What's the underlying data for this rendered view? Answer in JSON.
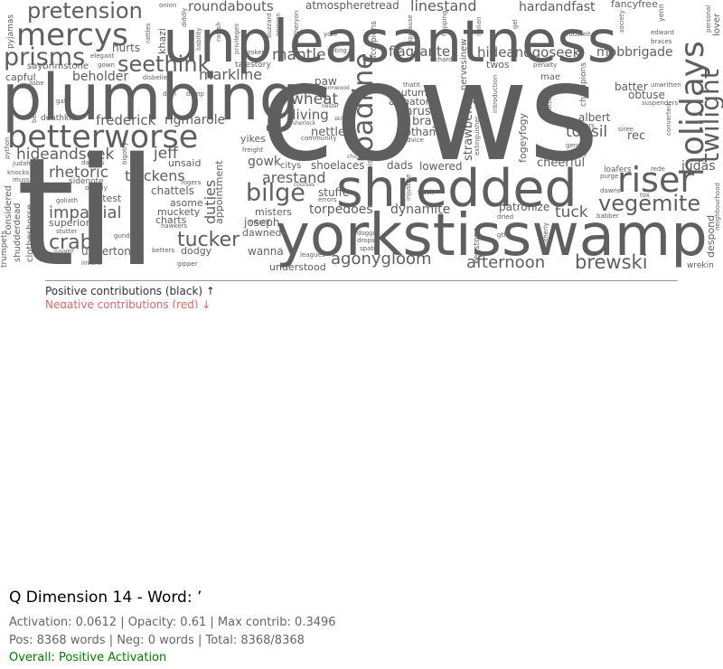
{
  "colors": {
    "word": "#5f5f5f",
    "positive": "#333333",
    "negative": "#e06666",
    "overall": "#008000"
  },
  "legend": {
    "positive": "Positive contributions (black) ↑",
    "negative": "Negative contributions (red) ↓"
  },
  "info": {
    "title": "Q Dimension 14 - Word: ’",
    "activation_line": "Activation: 0.0612 | Opacity: 0.61 | Max contrib: 0.3496",
    "counts_line": "Pos: 8368 words | Neg: 0 words | Total: 8368/8368",
    "overall": "Overall: Positive Activation"
  },
  "words": [
    "cows",
    "til",
    "plumbing",
    "unpleasantness",
    "yorkstisswamp",
    "shredded",
    "betterworse",
    "mercys",
    "pretension",
    "prisms",
    "seethink",
    "riser",
    "holidays",
    "twilight",
    "roadline",
    "bilge",
    "vegemite",
    "tucker",
    "crabs",
    "impartial",
    "agonygloom",
    "afternoon",
    "brewski",
    "rhetoric",
    "hideandseek",
    "jeff",
    "thickens",
    "arestand",
    "linestand",
    "hardandfast",
    "hideandgoseek",
    "mobbrigade",
    "flagrante",
    "mantle",
    "markline",
    "roundabouts",
    "atmospheretread",
    "fancyfree",
    "wheat",
    "diving",
    "nettle",
    "thrust",
    "bray",
    "gotham",
    "autumn",
    "alligator",
    "tonsil",
    "rec",
    "albert",
    "batter",
    "obtuse",
    "cheerful",
    "judas",
    "tuck",
    "patronize",
    "torpedoes",
    "dynamite",
    "dads",
    "lowered",
    "stuffe",
    "shoelaces",
    "citys",
    "gowk",
    "yikes",
    "frederick",
    "rigmarole",
    "beholder",
    "capful",
    "saybrimstone",
    "hurts",
    "chattels",
    "unsaid",
    "duties",
    "appointment",
    "misters",
    "joseph",
    "dawned",
    "wanna",
    "understood",
    "undertone",
    "dodgy",
    "superiority",
    "charts",
    "muckety",
    "asome",
    "fittest",
    "sidenote",
    "deathkill",
    "strawberry",
    "nervesinew",
    "fogeyfogy",
    "keystone",
    "despond",
    "wrekin",
    "paw",
    "twos",
    "mae",
    "shudderdead",
    "clotheshorse",
    "considered",
    "trumpets",
    "pyjamas",
    "khazi",
    "talestory",
    "scorpions",
    "namenoise",
    "champions",
    "loafers",
    "purge",
    "dawns",
    "babber",
    "courses",
    "errors",
    "community",
    "sherlock",
    "skirt",
    "nester",
    "wormwood",
    "freight",
    "chick",
    "judah",
    "knocks",
    "muss",
    "orderly",
    "goliath",
    "stutter",
    "gundy",
    "betters",
    "gipper",
    "invent",
    "luvver",
    "hisself",
    "leagues",
    "doggie",
    "dropsy",
    "spate",
    "dried",
    "gtfo",
    "brotherly",
    "frack",
    "injustice",
    "advice",
    "thatit",
    "introduction",
    "titter",
    "gender",
    "ideology",
    "converted",
    "tailors",
    "siree",
    "rede",
    "tox",
    "suspenders",
    "unwritten",
    "braces",
    "edward",
    "troubleit",
    "society",
    "yenn",
    "personal",
    "lover",
    "penalty",
    "richard",
    "voting",
    "yore",
    "broker",
    "privileges",
    "liability",
    "diddly",
    "onion",
    "rattles",
    "elegant",
    "gown",
    "disbelief",
    "doin",
    "damp",
    "asbe",
    "gal",
    "bendwait",
    "python",
    "rogers",
    "hawkers",
    "bigotry",
    "daddys",
    "gel",
    "italian",
    "flapping",
    "applause",
    "buzzard",
    "opinion",
    "thitheryon",
    "radish",
    "neighbourhood",
    "extinguisher"
  ]
}
